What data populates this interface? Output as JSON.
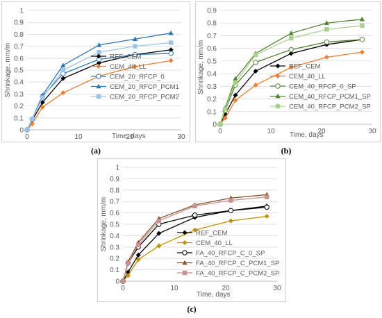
{
  "captions": [
    "(a)",
    "(b)",
    "(c)"
  ],
  "colors": {
    "REF": "#000000",
    "LL": "#ED7D31",
    "LL_c": "#BF9000",
    "RFCP0": "#2E75B6",
    "PCM1_a": "#2E75B6",
    "PCM2_a": "#9DC3E6",
    "green_dark": "#548235",
    "green_light": "#A9D18E",
    "brown_dark": "#7F4F24",
    "pink": "#C89090"
  },
  "chart_data": [
    {
      "type": "line",
      "panel": "a",
      "xlabel": "Time, days",
      "ylabel": "Shrinkage, mm/m",
      "xlim": [
        0,
        30
      ],
      "ylim": [
        0,
        1
      ],
      "xticks": [
        "0",
        "10",
        "20",
        "30"
      ],
      "yticks": [
        "0",
        "0.1",
        "0.2",
        "0.3",
        "0.4",
        "0.5",
        "0.6",
        "0.7",
        "0.8",
        "0.9",
        "1"
      ],
      "grid": true,
      "legend_position": "bottom-right",
      "x": [
        0,
        1,
        3,
        7,
        14,
        21,
        28
      ],
      "series": [
        {
          "name": "REF_CEM",
          "values": [
            0,
            0.08,
            0.23,
            0.43,
            0.56,
            0.63,
            0.67
          ],
          "color": "#000000",
          "marker": "diamond"
        },
        {
          "name": "CEM_40_LL",
          "values": [
            0,
            0.05,
            0.19,
            0.31,
            0.45,
            0.53,
            0.58
          ],
          "color": "#ED7D31",
          "marker": "diamond"
        },
        {
          "name": "CEM_20_RFCP_0",
          "values": [
            0,
            0.09,
            0.28,
            0.47,
            0.59,
            0.63,
            0.64
          ],
          "color": "#2E75B6",
          "marker": "circle-open"
        },
        {
          "name": "CEM_20_RFCP_PCM1",
          "values": [
            0,
            0.09,
            0.29,
            0.54,
            0.71,
            0.76,
            0.81
          ],
          "color": "#2E75B6",
          "marker": "triangle"
        },
        {
          "name": "CEM_20_RFCP_PCM2",
          "values": [
            0,
            0.09,
            0.27,
            0.5,
            0.65,
            0.7,
            0.73
          ],
          "color": "#9DC3E6",
          "marker": "square"
        }
      ]
    },
    {
      "type": "line",
      "panel": "b",
      "xlabel": "Time, days",
      "ylabel": "Shrinkage, mm/m",
      "xlim": [
        0,
        30
      ],
      "ylim": [
        0,
        0.9
      ],
      "xticks": [
        "0",
        "10",
        "20",
        "30"
      ],
      "yticks": [
        "0",
        "0.1",
        "0.2",
        "0.3",
        "0.4",
        "0.5",
        "0.6",
        "0.7",
        "0.8",
        "0.9"
      ],
      "grid": true,
      "legend_position": "bottom-right",
      "x": [
        0,
        1,
        3,
        7,
        14,
        21,
        28
      ],
      "series": [
        {
          "name": "REF_CEM",
          "values": [
            0,
            0.08,
            0.23,
            0.42,
            0.56,
            0.63,
            0.67
          ],
          "color": "#000000",
          "marker": "diamond"
        },
        {
          "name": "CEM_40_LL",
          "values": [
            0,
            0.05,
            0.19,
            0.31,
            0.45,
            0.53,
            0.57
          ],
          "color": "#ED7D31",
          "marker": "diamond"
        },
        {
          "name": "CEM_40_RFCP_0_SP",
          "values": [
            0,
            0.11,
            0.31,
            0.49,
            0.59,
            0.65,
            0.67
          ],
          "color": "#548235",
          "marker": "circle-open"
        },
        {
          "name": "CEM_40_RFCP_PCM1_SP",
          "values": [
            0,
            0.13,
            0.36,
            0.56,
            0.72,
            0.8,
            0.83
          ],
          "color": "#548235",
          "marker": "triangle"
        },
        {
          "name": "CEM_40_RFCP_PCM2_SP",
          "values": [
            0,
            0.12,
            0.33,
            0.55,
            0.68,
            0.75,
            0.78
          ],
          "color": "#A9D18E",
          "marker": "square"
        }
      ]
    },
    {
      "type": "line",
      "panel": "c",
      "xlabel": "Time, days",
      "ylabel": "Shrinkage, mm/m",
      "xlim": [
        0,
        30
      ],
      "ylim": [
        0,
        1
      ],
      "xticks": [
        "0",
        "10",
        "20",
        "30"
      ],
      "yticks": [
        "0",
        "0.1",
        "0.2",
        "0.3",
        "0.4",
        "0.5",
        "0.6",
        "0.7",
        "0.8",
        "0.9",
        "1"
      ],
      "grid": true,
      "legend_position": "bottom-right",
      "x": [
        0,
        1,
        3,
        7,
        14,
        21,
        28
      ],
      "series": [
        {
          "name": "REF_CEM",
          "values": [
            0,
            0.08,
            0.23,
            0.42,
            0.56,
            0.62,
            0.66
          ],
          "color": "#000000",
          "marker": "diamond"
        },
        {
          "name": "CEM_40_LL",
          "values": [
            0,
            0.05,
            0.19,
            0.31,
            0.45,
            0.53,
            0.57
          ],
          "color": "#BF9000",
          "marker": "diamond"
        },
        {
          "name": "FA_40_RFCP_C_0_SP",
          "values": [
            0,
            0.16,
            0.3,
            0.5,
            0.58,
            0.62,
            0.65
          ],
          "color": "#000000",
          "marker": "circle-open"
        },
        {
          "name": "FA_40_RFCP_C_PCM1_SP",
          "values": [
            0,
            0.17,
            0.34,
            0.55,
            0.67,
            0.73,
            0.76
          ],
          "color": "#7F4F24",
          "marker": "triangle"
        },
        {
          "name": "FA_40_RFCP_C_PCM2_SP",
          "values": [
            0,
            0.16,
            0.32,
            0.53,
            0.66,
            0.71,
            0.74
          ],
          "color": "#C89090",
          "marker": "square"
        }
      ]
    }
  ]
}
